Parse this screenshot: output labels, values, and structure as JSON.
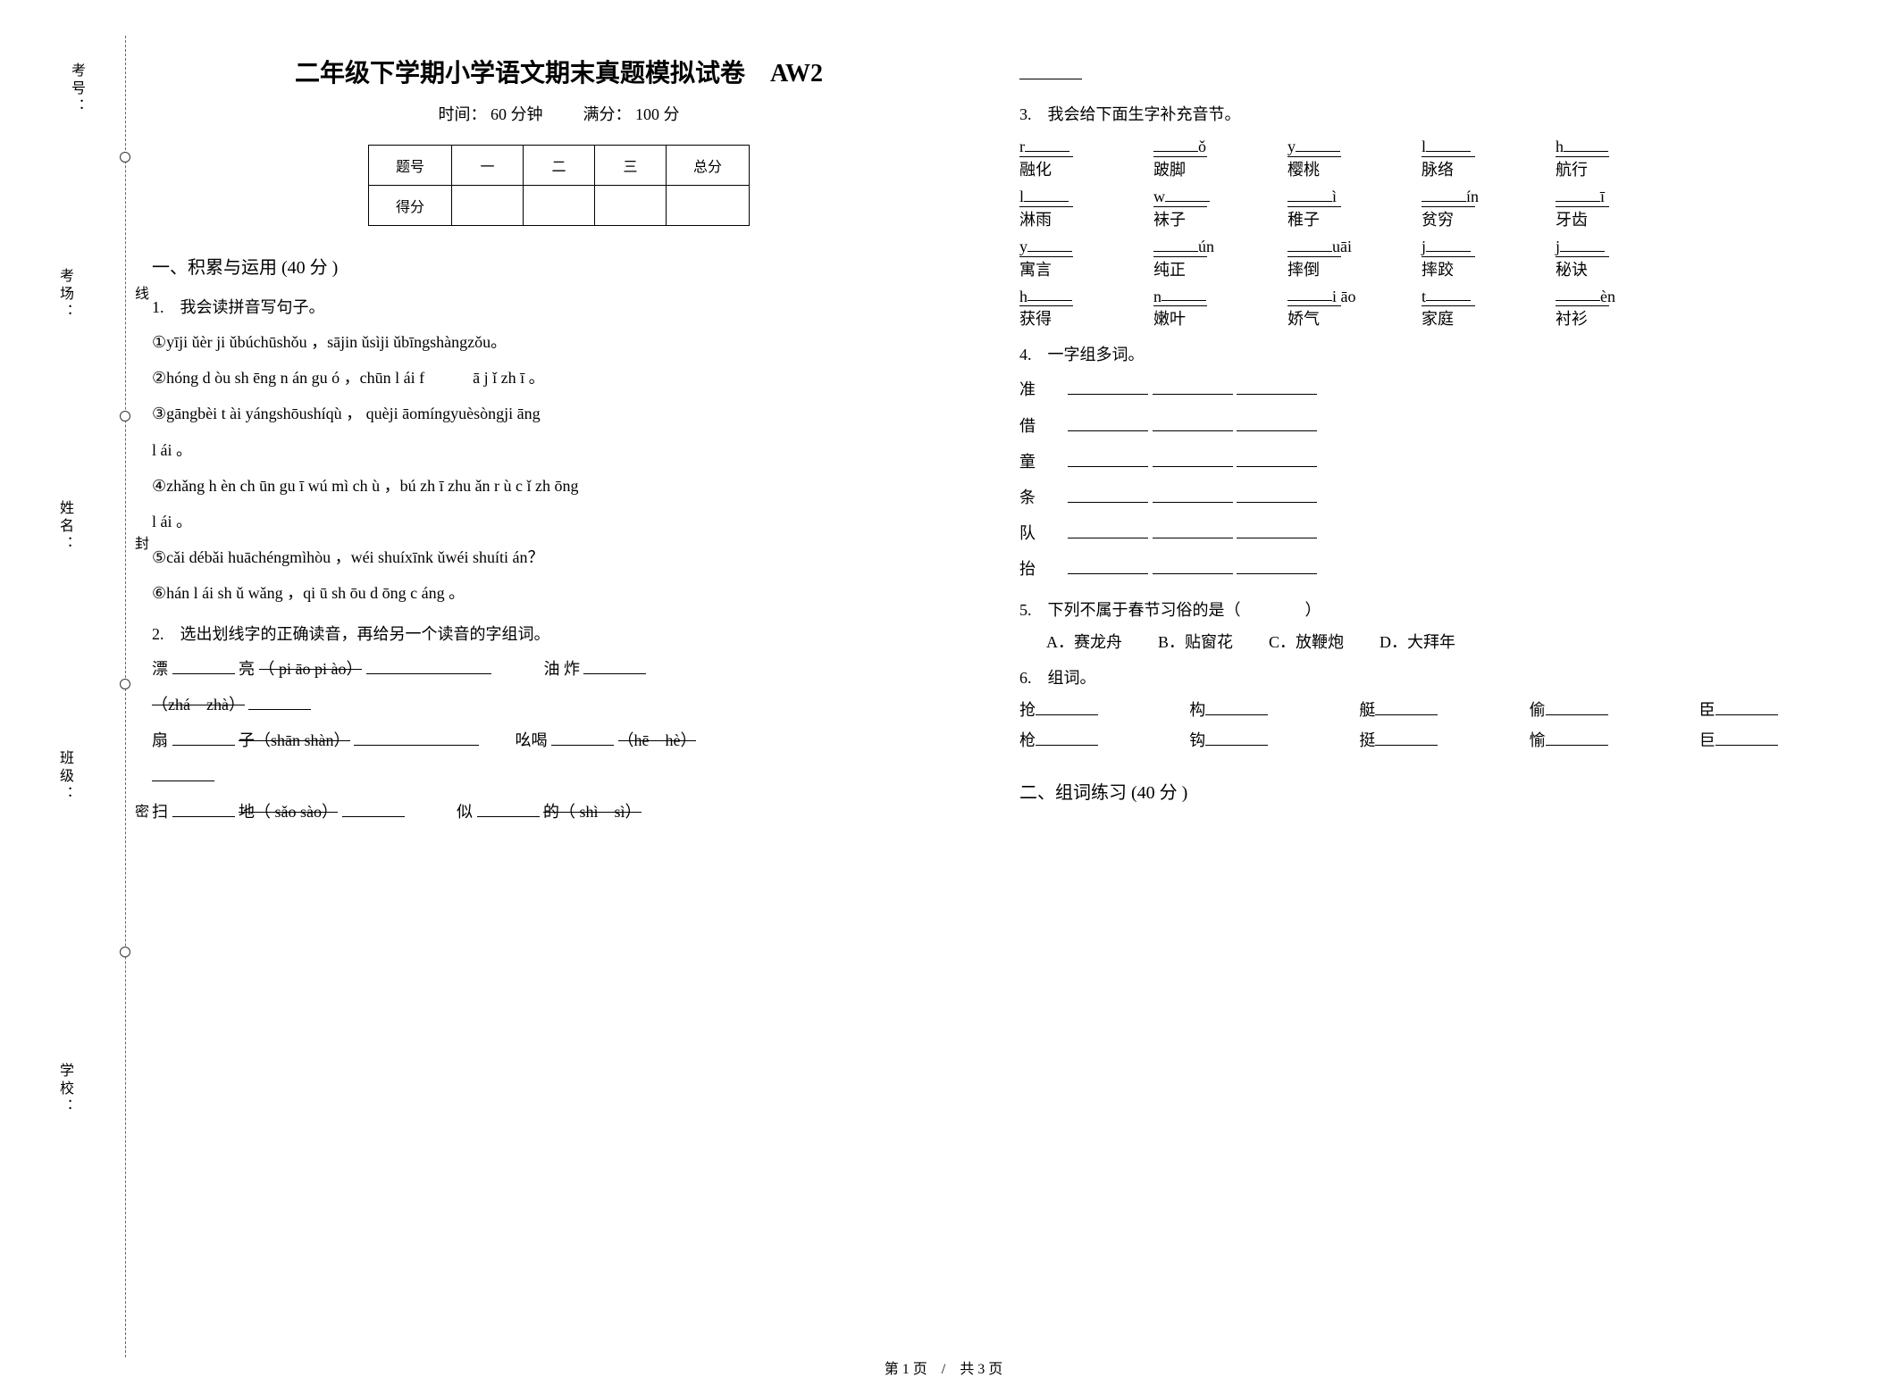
{
  "binding": {
    "labels": [
      "考号：",
      "考场：",
      "姓名：",
      "班级：",
      "学校："
    ],
    "words": [
      "线",
      "封",
      "密"
    ]
  },
  "header": {
    "title": "二年级下学期小学语文期末真题模拟试卷　AW2",
    "time_label": "时间：",
    "time_value": "60 分钟",
    "score_label": "满分：",
    "score_value": "100 分"
  },
  "score_table": {
    "headers": [
      "题号",
      "一",
      "二",
      "三",
      "总分"
    ],
    "row_label": "得分"
  },
  "section1": {
    "heading": "一、积累与运用  (40 分 )",
    "q1": {
      "stem": "1.　我会读拼音写句子。",
      "lines": [
        "①yīji ǔèr ji ǔbúchūshǒu ，sājin ǔsìji ǔbīngshàngzǒu。",
        "②hóng d òu sh ēng n án gu ó ，chūn l ái f　　　ā  j ǐ  zh ī  。",
        "③gāngbèi t ài yángshōushíqù ， quèji āomíngyuèsòngji āng",
        "l ái 。",
        "④zhǎng h èn ch ūn gu ī wú mì ch ù ，bú zh ī zhu ǎn r ù c ǐ zh ōng",
        "l ái 。",
        "⑤cǎi débǎi huāchéngmìhòu ，wéi shuíxīnk ǔwéi shuíti án？",
        "⑥hán l ái sh ǔ wǎng ，qi ū sh ōu d ōng c áng 。"
      ]
    },
    "q2": {
      "stem": "2.　选出划线字的正确读音，再给另一个读音的字组词。",
      "rows": [
        {
          "left": "漂",
          "opts": "（ pi āo pi ào）",
          "right_word": "油 炸"
        },
        {
          "left_opts": "（zhá　zhà）"
        },
        {
          "left": "扇",
          "tail": "子（shān shàn）",
          "right_word": "吆喝",
          "right_opts": "（hē　hè）"
        },
        {
          "left": "扫",
          "tail": "地（ sǎo sào）",
          "right_word": "似",
          "right_tail": "的（  shì　sì）"
        }
      ]
    },
    "q3": {
      "stem": "3.　我会给下面生字补充音节。",
      "grid": [
        [
          {
            "p": "r",
            "w": "融化"
          },
          {
            "p": "ǒ",
            "w": "跛脚",
            "pre": ""
          },
          {
            "p": "y",
            "w": "樱桃"
          },
          {
            "p": "l",
            "w": "脉络"
          },
          {
            "p": "h",
            "w": "航行"
          }
        ],
        [
          {
            "p": "l",
            "w": "淋雨"
          },
          {
            "p": "w",
            "w": "袜子"
          },
          {
            "p": "ì",
            "w": "稚子",
            "pre": ""
          },
          {
            "p": "ín",
            "w": "贫穷",
            "pre": ""
          },
          {
            "p": "ī",
            "w": "牙齿",
            "pre": ""
          }
        ],
        [
          {
            "p": "y",
            "w": "寓言"
          },
          {
            "p": "ún",
            "w": "纯正",
            "pre": ""
          },
          {
            "p": "uāi",
            "w": "摔倒",
            "pre": ""
          },
          {
            "p": "j",
            "w": "摔跤"
          },
          {
            "p": "j",
            "w": "秘诀"
          }
        ],
        [
          {
            "p": "h",
            "w": "获得"
          },
          {
            "p": "n",
            "w": "嫩叶"
          },
          {
            "p": "i āo",
            "w": "娇气",
            "pre": ""
          },
          {
            "p": "t",
            "w": "家庭"
          },
          {
            "p": "èn",
            "w": "衬衫",
            "pre": ""
          }
        ]
      ]
    },
    "q4": {
      "stem": "4.　一字组多词。",
      "chars": [
        "准",
        "借",
        "童",
        "条",
        "队",
        "抬"
      ]
    },
    "q5": {
      "stem": "5.　下列不属于春节习俗的是（　　　　）",
      "options": [
        "A．赛龙舟",
        "B．贴窗花",
        "C．放鞭炮",
        "D．大拜年"
      ]
    },
    "q6": {
      "stem": "6.　组词。",
      "pairs": [
        [
          "抢",
          "构",
          "艇",
          "偷",
          "臣"
        ],
        [
          "枪",
          "钩",
          "挺",
          "愉",
          "巨"
        ]
      ]
    }
  },
  "section2": {
    "heading": "二、组词练习  (40 分 )"
  },
  "footer": "第 1 页　/　共 3 页"
}
